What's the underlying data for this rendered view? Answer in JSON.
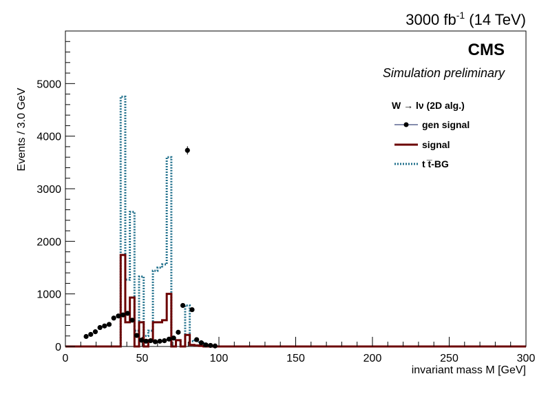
{
  "header": {
    "lumi_prefix": "3000 fb",
    "lumi_exp": "-1",
    "energy": " (14 TeV)",
    "experiment": "CMS",
    "status": "Simulation preliminary"
  },
  "legend": {
    "title": "W  → lν (2D alg.)",
    "entries": [
      {
        "label": "gen signal",
        "style": "marker",
        "color": "#000000"
      },
      {
        "label": "signal",
        "style": "solid",
        "color": "#6b0000"
      },
      {
        "label": "t t̅-BG",
        "style": "dotted",
        "color": "#1f6f8b"
      }
    ]
  },
  "chart_data": {
    "type": "line",
    "title": "",
    "xlabel": "invariant mass M [GeV]",
    "ylabel": "Events / 3.0 GeV",
    "xlim": [
      0,
      300
    ],
    "ylim": [
      0,
      6000
    ],
    "xticks": [
      0,
      50,
      100,
      150,
      200,
      250,
      300
    ],
    "yticks": [
      0,
      1000,
      2000,
      3000,
      4000,
      5000
    ],
    "bin_width": 3,
    "series": [
      {
        "name": "gen signal",
        "kind": "points",
        "color": "#000000",
        "x": [
          13.5,
          16.5,
          19.5,
          22.5,
          25.5,
          28.5,
          31.5,
          34.5,
          37.5,
          40.5,
          43.5,
          46.5,
          49.5,
          52.5,
          55.5,
          58.5,
          61.5,
          64.5,
          67.5,
          70.5,
          73.5,
          76.5,
          79.5,
          82.5,
          85.5,
          88.5,
          91.5,
          94.5,
          97.5
        ],
        "y": [
          190,
          230,
          280,
          360,
          390,
          420,
          540,
          580,
          600,
          630,
          500,
          210,
          120,
          100,
          110,
          90,
          100,
          110,
          140,
          160,
          270,
          780,
          3730,
          700,
          130,
          70,
          30,
          20,
          10
        ]
      },
      {
        "name": "signal",
        "kind": "step",
        "color": "#6b0000",
        "edges": [
          36,
          39,
          42,
          45,
          48,
          51,
          54,
          57,
          60,
          63,
          66,
          69,
          72,
          75,
          78,
          81,
          84,
          87,
          90
        ],
        "values": [
          1740,
          460,
          930,
          0,
          460,
          0,
          120,
          460,
          460,
          500,
          1000,
          0,
          120,
          0,
          220,
          30,
          20,
          10
        ]
      },
      {
        "name": "t t̅-BG",
        "kind": "step",
        "color": "#1f6f8b",
        "edges": [
          36,
          39,
          42,
          45,
          48,
          51,
          54,
          57,
          60,
          63,
          66,
          69,
          72,
          75,
          78,
          81,
          84,
          87,
          90
        ],
        "values": [
          4750,
          1270,
          2560,
          300,
          1330,
          200,
          300,
          1440,
          1500,
          1560,
          3600,
          0,
          120,
          0,
          780,
          100,
          110,
          60
        ]
      }
    ]
  }
}
